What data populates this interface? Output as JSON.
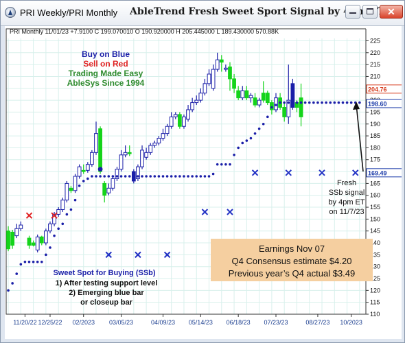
{
  "window": {
    "title": "PRI Weekly/PRI Monthly",
    "chart_title": "AbleTrend Fresh Sweet Sport Signal by 4pm ET",
    "controls": [
      "minimize",
      "maximize",
      "close"
    ]
  },
  "chart_data": {
    "type": "candlestick",
    "ohlc_header": "PRI  Monthly 11/01/23 +7.9100 C 199.070010 O 190.920000 H 205.445000 L 189.430000 570.88K",
    "y_ticks": [
      110,
      115,
      120,
      125,
      130,
      135,
      140,
      145,
      150,
      155,
      160,
      165,
      170,
      175,
      180,
      185,
      190,
      195,
      200,
      205,
      210,
      215,
      220,
      225
    ],
    "ylim": [
      110,
      226
    ],
    "x_labels": [
      "11/20/22",
      "12/25/22",
      "02/2023",
      "03/05/23",
      "04/09/23",
      "05/14/23",
      "06/18/23",
      "07/23/23",
      "08/27/23",
      "10/2023"
    ],
    "x_label_positions": [
      4,
      10,
      18,
      27,
      37,
      46,
      55,
      64,
      74,
      82
    ],
    "price_tags": [
      {
        "value": 204.7,
        "label": "204.76",
        "color": "#d63c1e"
      },
      {
        "value": 198.6,
        "label": "198.60",
        "color": "#1a3aa8"
      },
      {
        "value": 169.49,
        "label": "169.49",
        "color": "#1a3aa8"
      }
    ],
    "candles": [
      [
        0,
        137.5,
        145,
        147,
        136.5,
        "g"
      ],
      [
        1,
        144.5,
        139,
        145.5,
        137.5,
        "g"
      ],
      [
        2,
        143,
        146,
        148,
        142,
        "b"
      ],
      [
        3,
        146,
        147.5,
        149,
        145,
        "b"
      ],
      [
        5,
        142,
        139,
        143,
        137.5,
        "g"
      ],
      [
        6,
        139,
        140,
        141,
        138.5,
        "g"
      ],
      [
        7,
        137,
        142.5,
        143.5,
        136,
        "b"
      ],
      [
        8,
        142.5,
        140,
        143,
        139,
        "g"
      ],
      [
        9,
        140,
        145,
        146,
        139,
        "b"
      ],
      [
        10,
        145,
        148,
        149,
        144,
        "b"
      ],
      [
        11,
        148,
        152,
        153,
        147,
        "b"
      ],
      [
        12,
        152,
        154,
        155,
        151,
        "b"
      ],
      [
        13,
        154,
        158,
        159,
        153,
        "b"
      ],
      [
        14,
        158,
        165,
        166,
        157,
        "b"
      ],
      [
        15,
        163,
        162,
        164,
        161,
        "g"
      ],
      [
        16,
        162,
        168,
        169,
        161,
        "b"
      ],
      [
        17,
        168,
        172,
        173,
        167,
        "b"
      ],
      [
        18,
        170,
        170.5,
        173,
        169,
        "g"
      ],
      [
        19,
        170.5,
        173,
        174,
        169.5,
        "b"
      ],
      [
        20,
        173,
        178,
        179,
        172,
        "b"
      ],
      [
        21,
        178,
        186,
        191,
        177,
        "b"
      ],
      [
        22,
        188,
        170,
        189,
        169,
        "g"
      ],
      [
        23,
        165,
        160,
        166,
        157,
        "g"
      ],
      [
        24,
        161,
        163,
        165,
        160,
        "b"
      ],
      [
        25,
        163,
        167,
        168,
        162,
        "b"
      ],
      [
        26,
        167,
        171,
        172,
        166,
        "b"
      ],
      [
        27,
        171,
        177,
        179,
        170,
        "b"
      ],
      [
        28,
        177,
        178,
        181,
        176,
        "b"
      ],
      [
        29,
        178,
        177.5,
        181,
        176.5,
        "g"
      ],
      [
        30,
        170,
        166,
        171,
        165,
        "b"
      ],
      [
        31,
        167,
        172,
        173,
        166,
        "b"
      ],
      [
        32,
        172,
        179,
        181,
        171,
        "b"
      ],
      [
        33,
        176,
        178,
        180,
        175,
        "b"
      ],
      [
        34,
        178,
        181,
        182,
        177,
        "b"
      ],
      [
        35,
        181,
        182,
        183,
        180,
        "b"
      ],
      [
        36,
        182,
        184,
        185,
        181,
        "b"
      ],
      [
        37,
        184,
        186,
        188,
        183,
        "b"
      ],
      [
        38,
        186,
        189,
        190,
        185,
        "b"
      ],
      [
        39,
        189,
        193,
        195,
        188,
        "b"
      ],
      [
        40,
        193,
        194,
        195,
        192,
        "b"
      ],
      [
        41,
        194,
        189,
        195,
        188,
        "g"
      ],
      [
        42,
        189,
        193,
        194,
        188,
        "b"
      ],
      [
        43,
        192,
        196,
        198,
        191,
        "b"
      ],
      [
        44,
        196,
        199,
        201,
        195,
        "b"
      ],
      [
        45,
        199,
        200,
        202,
        198,
        "b"
      ],
      [
        46,
        200,
        203,
        205,
        199,
        "b"
      ],
      [
        47,
        203,
        207,
        209,
        202,
        "b"
      ],
      [
        48,
        207,
        211,
        213,
        206,
        "b"
      ],
      [
        49,
        205,
        213,
        215,
        204,
        "b"
      ],
      [
        50,
        213,
        217,
        220,
        212,
        "b"
      ],
      [
        51,
        217,
        216,
        219,
        212,
        "g"
      ],
      [
        52,
        213,
        213.5,
        215,
        212,
        "b"
      ],
      [
        53,
        214,
        209,
        216,
        204,
        "g"
      ],
      [
        54,
        209,
        205,
        211,
        203,
        "g"
      ],
      [
        55,
        204,
        201,
        206,
        200,
        "g"
      ],
      [
        56,
        201,
        204,
        206,
        200,
        "b"
      ],
      [
        57,
        204,
        201,
        206,
        200,
        "g"
      ],
      [
        58,
        201,
        202,
        203,
        199,
        "b"
      ],
      [
        59,
        201,
        198,
        203,
        197,
        "g"
      ],
      [
        60,
        198,
        200,
        201,
        197,
        "b"
      ],
      [
        61,
        200,
        203,
        208,
        199,
        "g"
      ],
      [
        62,
        203,
        199,
        204,
        198,
        "g"
      ],
      [
        63,
        199,
        196,
        200,
        194,
        "g"
      ],
      [
        64,
        196,
        201,
        203,
        195,
        "b"
      ],
      [
        65,
        201,
        197,
        203,
        196,
        "g"
      ],
      [
        66,
        197,
        193,
        199,
        191,
        "g"
      ],
      [
        67,
        193,
        200,
        215,
        190,
        "b"
      ],
      [
        68,
        207,
        197,
        209,
        196,
        "b"
      ],
      [
        69,
        199,
        197,
        200,
        195,
        "g"
      ],
      [
        70,
        193,
        201,
        207,
        189,
        "g"
      ]
    ],
    "ssb_dots": [
      [
        0,
        120
      ],
      [
        1,
        123
      ],
      [
        2,
        127
      ],
      [
        3,
        131
      ],
      [
        4,
        132
      ],
      [
        5,
        132
      ],
      [
        6,
        132
      ],
      [
        7,
        132
      ],
      [
        8,
        132
      ],
      [
        9,
        135
      ],
      [
        10,
        138
      ],
      [
        11,
        143
      ],
      [
        12,
        146
      ],
      [
        13,
        148
      ],
      [
        14,
        152
      ],
      [
        15,
        154
      ],
      [
        16,
        158
      ],
      [
        17,
        164
      ],
      [
        18,
        166
      ],
      [
        19,
        167
      ],
      [
        20,
        168
      ],
      [
        21,
        168
      ],
      [
        22,
        168
      ],
      [
        23,
        168
      ],
      [
        24,
        168
      ],
      [
        25,
        168
      ],
      [
        26,
        168
      ],
      [
        27,
        168
      ],
      [
        28,
        168
      ],
      [
        29,
        168
      ],
      [
        30,
        168
      ],
      [
        31,
        168
      ],
      [
        32,
        168
      ],
      [
        33,
        168
      ],
      [
        34,
        168
      ],
      [
        35,
        168
      ],
      [
        36,
        168
      ],
      [
        37,
        168
      ],
      [
        38,
        168
      ],
      [
        39,
        168
      ],
      [
        40,
        168
      ],
      [
        41,
        168
      ],
      [
        42,
        168
      ],
      [
        43,
        168
      ],
      [
        44,
        168
      ],
      [
        45,
        168
      ],
      [
        46,
        168
      ],
      [
        47,
        168
      ],
      [
        48,
        168
      ],
      [
        49,
        169
      ],
      [
        50,
        173
      ],
      [
        51,
        173
      ],
      [
        52,
        173
      ],
      [
        53,
        173
      ],
      [
        54,
        177
      ],
      [
        55,
        180
      ],
      [
        56,
        182
      ],
      [
        57,
        183
      ],
      [
        58,
        184
      ],
      [
        59,
        186
      ],
      [
        60,
        188
      ],
      [
        61,
        190
      ],
      [
        62,
        193
      ],
      [
        63,
        197
      ],
      [
        64,
        198
      ],
      [
        65,
        199
      ],
      [
        66,
        199
      ],
      [
        67,
        199
      ],
      [
        68,
        199
      ],
      [
        69,
        199
      ],
      [
        70,
        199
      ],
      [
        71,
        199
      ],
      [
        72,
        199
      ],
      [
        73,
        199
      ],
      [
        74,
        199
      ],
      [
        75,
        199
      ],
      [
        76,
        199
      ],
      [
        77,
        199
      ],
      [
        78,
        199
      ],
      [
        79,
        199
      ],
      [
        80,
        199
      ],
      [
        81,
        199
      ],
      [
        82,
        199
      ],
      [
        83,
        199
      ],
      [
        84,
        199
      ]
    ],
    "blue_dot": [
      22,
      171
    ],
    "red_x": [
      [
        5,
        151.5
      ],
      [
        11,
        151.5
      ]
    ],
    "blue_x": [
      [
        24,
        135
      ],
      [
        31,
        135
      ],
      [
        38,
        135
      ],
      [
        47,
        153
      ],
      [
        53,
        153
      ],
      [
        59,
        169.5
      ],
      [
        67,
        169.5
      ],
      [
        75,
        169.5
      ],
      [
        83,
        169.5
      ]
    ]
  },
  "annotations": {
    "buy": "Buy on Blue",
    "sell": "Sell on Red",
    "easy": "Trading Made Easy",
    "ablesys": "AbleSys Since 1994",
    "sweet_title": "Sweet Spot for Buying (SSb)",
    "sweet_1": "1) After testing support level",
    "sweet_2": "2) Emerging blue bar",
    "sweet_3": "or closeup bar",
    "fresh": "Fresh",
    "fresh_2": "SSb signal",
    "fresh_3": "by 4pm ET",
    "fresh_4": "on 11/7/23",
    "earnings_1": "Earnings Nov 07",
    "earnings_2": "Q4 Consensus estimate $4.20",
    "earnings_3": "Previous year’s Q4 actual $3.49"
  },
  "colors": {
    "up_blue": "#1a1fa8",
    "green": "#14d41a",
    "red_x": "#e02424",
    "blue_x": "#2232c4",
    "grid": "#d8f0ec",
    "annotation_box": "#f5cfa0"
  }
}
